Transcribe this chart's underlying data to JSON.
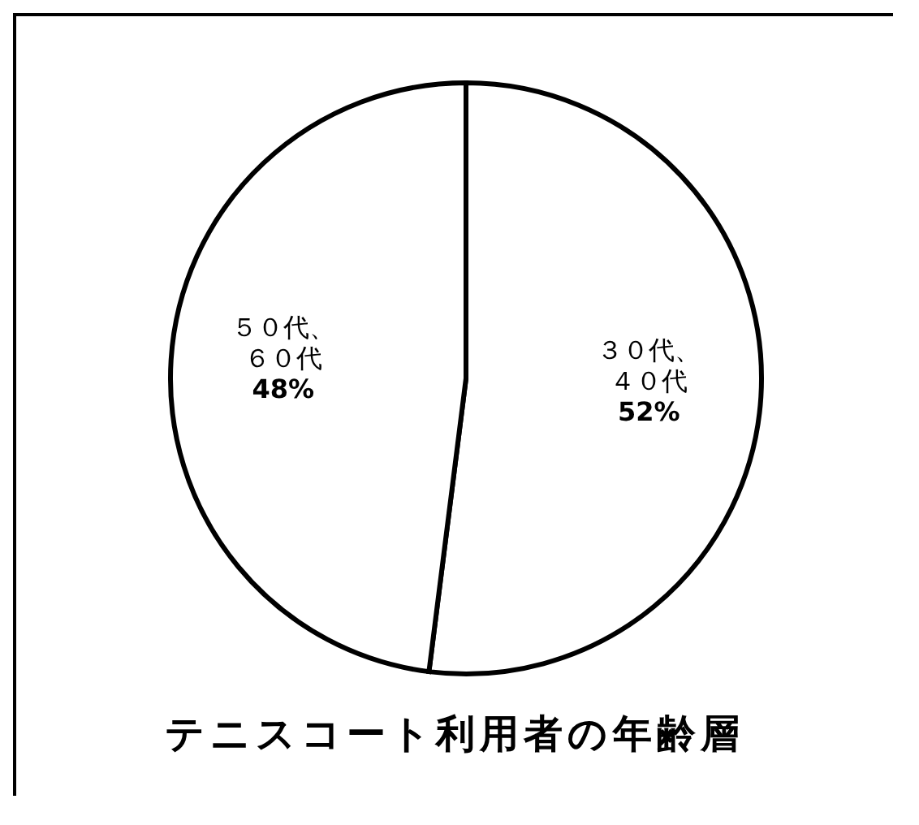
{
  "chart_data": {
    "type": "pie",
    "title": "テニスコート利用者の年齢層",
    "categories": [
      "３０代、４０代",
      "５０代、６０代"
    ],
    "values": [
      52,
      48
    ],
    "colors": [
      "#ffffff",
      "#ffffff"
    ],
    "value_labels": [
      "52%",
      "48%"
    ]
  }
}
